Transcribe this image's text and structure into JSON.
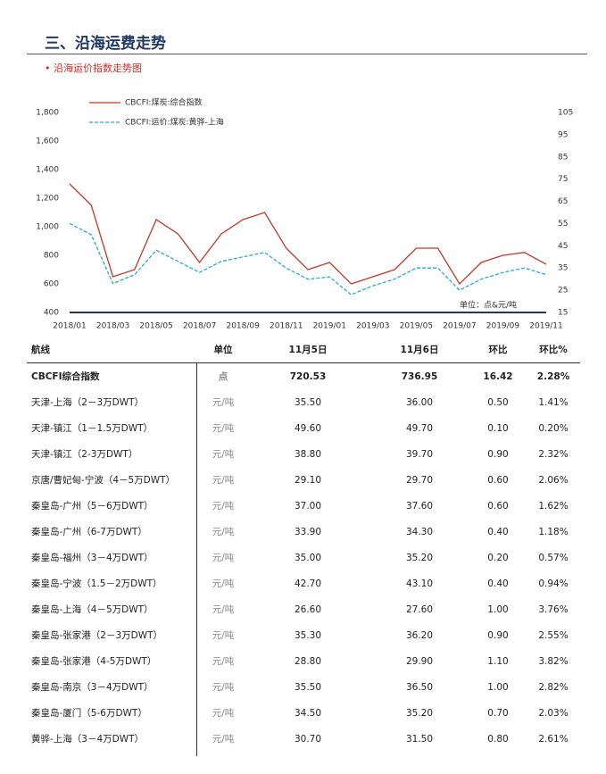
{
  "header": {
    "title": "三、沿海运费走势",
    "subtitle": "• 沿海运价指数走势图"
  },
  "chart_data": {
    "type": "line",
    "categories": [
      "2018/01",
      null,
      "2018/03",
      null,
      "2018/05",
      null,
      "2018/07",
      null,
      "2018/09",
      null,
      "2018/11",
      null,
      "2019/01",
      null,
      "2019/03",
      null,
      "2019/05",
      null,
      "2019/07",
      null,
      "2019/09",
      null,
      "2019/11"
    ],
    "series": [
      {
        "name": "CBCFI:煤炭:综合指数",
        "color": "#c0392b",
        "axis": "y",
        "dashed": false,
        "values": [
          1300,
          1150,
          650,
          700,
          1050,
          950,
          750,
          950,
          1050,
          1100,
          850,
          700,
          750,
          600,
          650,
          700,
          850,
          850,
          600,
          750,
          800,
          820,
          737
        ]
      },
      {
        "name": "CBCFI:运价:煤炭:黄骅-上海",
        "color": "#2aa8d8",
        "axis": "y2",
        "dashed": true,
        "values": [
          55,
          50,
          28,
          32,
          43,
          38,
          33,
          38,
          40,
          42,
          35,
          30,
          31,
          23,
          27,
          30,
          35,
          35,
          25,
          30,
          33,
          35,
          32
        ]
      }
    ],
    "ylim": [
      400,
      1800
    ],
    "yticks": [
      400,
      600,
      800,
      {
        "value": 1000,
        "label": "1,000"
      },
      {
        "value": 1200,
        "label": "1,200"
      },
      {
        "value": 1400,
        "label": "1,400"
      },
      {
        "value": 1600,
        "label": "1,600"
      },
      {
        "value": 1800,
        "label": "1,800"
      }
    ],
    "y2lim": [
      15,
      105
    ],
    "y2ticks": [
      15,
      25,
      35,
      45,
      55,
      65,
      75,
      85,
      95,
      105
    ],
    "annotation": "单位：点&元/吨"
  },
  "table": {
    "columns": [
      "航线",
      "单位",
      "11月5日",
      "11月6日",
      "环比",
      "环比%"
    ],
    "rows": [
      [
        "CBCFI综合指数",
        "点",
        "720.53",
        "736.95",
        "16.42",
        "2.28%"
      ],
      [
        "天津-上海（2－3万DWT）",
        "元/吨",
        "35.50",
        "36.00",
        "0.50",
        "1.41%"
      ],
      [
        "天津-镇江（1－1.5万DWT）",
        "元/吨",
        "49.60",
        "49.70",
        "0.10",
        "0.20%"
      ],
      [
        "天津-镇江（2-3万DWT）",
        "元/吨",
        "38.80",
        "39.70",
        "0.90",
        "2.32%"
      ],
      [
        "京唐/曹妃甸-宁波（4－5万DWT）",
        "元/吨",
        "29.10",
        "29.70",
        "0.60",
        "2.06%"
      ],
      [
        "秦皇岛-广州（5－6万DWT）",
        "元/吨",
        "37.00",
        "37.60",
        "0.60",
        "1.62%"
      ],
      [
        "秦皇岛-广州（6-7万DWT）",
        "元/吨",
        "33.90",
        "34.30",
        "0.40",
        "1.18%"
      ],
      [
        "秦皇岛-福州（3－4万DWT）",
        "元/吨",
        "35.00",
        "35.20",
        "0.20",
        "0.57%"
      ],
      [
        "秦皇岛-宁波（1.5－2万DWT）",
        "元/吨",
        "42.70",
        "43.10",
        "0.40",
        "0.94%"
      ],
      [
        "秦皇岛-上海（4－5万DWT）",
        "元/吨",
        "26.60",
        "27.60",
        "1.00",
        "3.76%"
      ],
      [
        "秦皇岛-张家港（2－3万DWT）",
        "元/吨",
        "35.30",
        "36.20",
        "0.90",
        "2.55%"
      ],
      [
        "秦皇岛-张家港（4-5万DWT）",
        "元/吨",
        "28.80",
        "29.90",
        "1.10",
        "3.82%"
      ],
      [
        "秦皇岛-南京（3－4万DWT）",
        "元/吨",
        "35.50",
        "36.50",
        "1.00",
        "2.82%"
      ],
      [
        "秦皇岛-厦门（5-6万DWT）",
        "元/吨",
        "34.50",
        "35.20",
        "0.70",
        "2.03%"
      ],
      [
        "黄骅-上海（3－4万DWT）",
        "元/吨",
        "30.70",
        "31.50",
        "0.80",
        "2.61%"
      ]
    ]
  }
}
